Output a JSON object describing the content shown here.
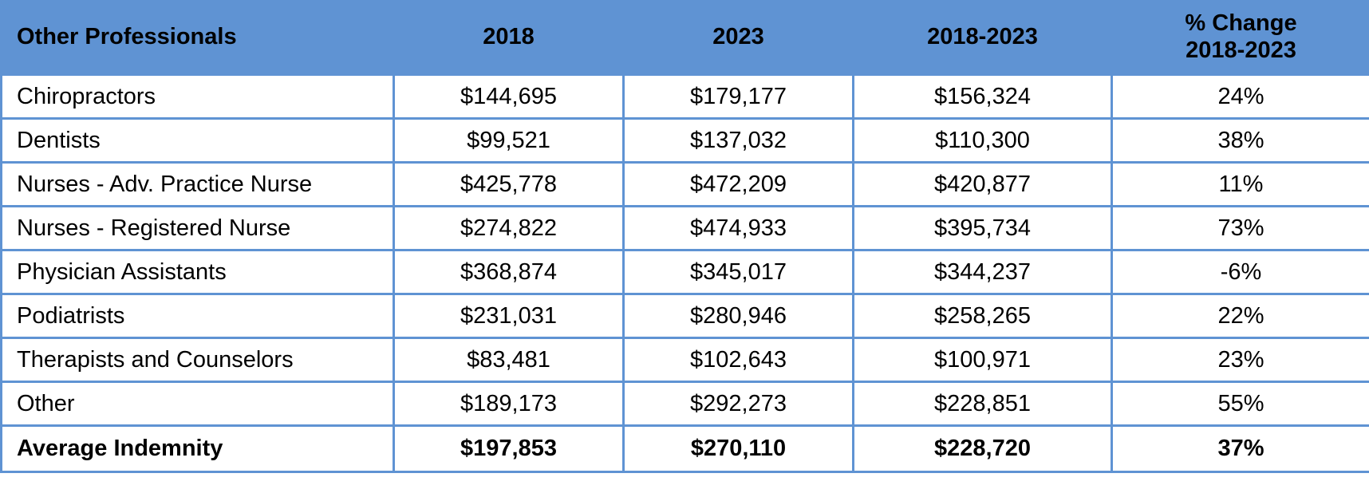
{
  "table": {
    "headers": [
      "Other Professionals",
      "2018",
      "2023",
      "2018-2023",
      "% Change",
      "2018-2023"
    ],
    "rows": [
      [
        "Chiropractors",
        "$144,695",
        "$179,177",
        "$156,324",
        "24%"
      ],
      [
        "Dentists",
        "$99,521",
        "$137,032",
        "$110,300",
        "38%"
      ],
      [
        "Nurses - Adv. Practice Nurse",
        "$425,778",
        "$472,209",
        "$420,877",
        "11%"
      ],
      [
        "Nurses - Registered Nurse",
        "$274,822",
        "$474,933",
        "$395,734",
        "73%"
      ],
      [
        "Physician Assistants",
        "$368,874",
        "$345,017",
        "$344,237",
        "-6%"
      ],
      [
        "Podiatrists",
        "$231,031",
        "$280,946",
        "$258,265",
        "22%"
      ],
      [
        "Therapists and Counselors",
        "$83,481",
        "$102,643",
        "$100,971",
        "23%"
      ],
      [
        "Other",
        "$189,173",
        "$292,273",
        "$228,851",
        "55%"
      ]
    ],
    "total": [
      "Average Indemnity",
      "$197,853",
      "$270,110",
      "$228,720",
      "37%"
    ],
    "colors": {
      "header_bg": "#5f93d3",
      "border": "#5f93d3",
      "text": "#000000"
    }
  }
}
